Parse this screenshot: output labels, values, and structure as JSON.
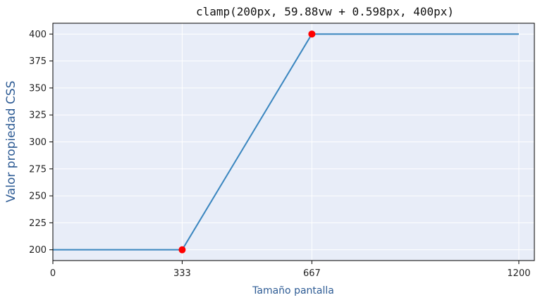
{
  "chart_data": {
    "type": "line",
    "title": "clamp(200px, 59.88vw + 0.598px, 400px)",
    "xlabel": "Tamaño pantalla",
    "ylabel": "Valor propiedad CSS",
    "xlim": [
      0,
      1240
    ],
    "ylim": [
      190,
      410
    ],
    "x_ticks": [
      0,
      333,
      667,
      1200
    ],
    "y_ticks": [
      200,
      225,
      250,
      275,
      300,
      325,
      350,
      375,
      400
    ],
    "grid": true,
    "series": [
      {
        "x": [
          0,
          333,
          667,
          1200
        ],
        "values": [
          200,
          200,
          400,
          400
        ],
        "color": "#3a86bf"
      }
    ],
    "markers": [
      {
        "x": 333,
        "y": 200
      },
      {
        "x": 667,
        "y": 400
      }
    ],
    "colors": {
      "plot_background": "#e8edf8",
      "line": "#3a86bf",
      "marker": "#ff0000",
      "label_accent": "#2d5b94"
    }
  }
}
